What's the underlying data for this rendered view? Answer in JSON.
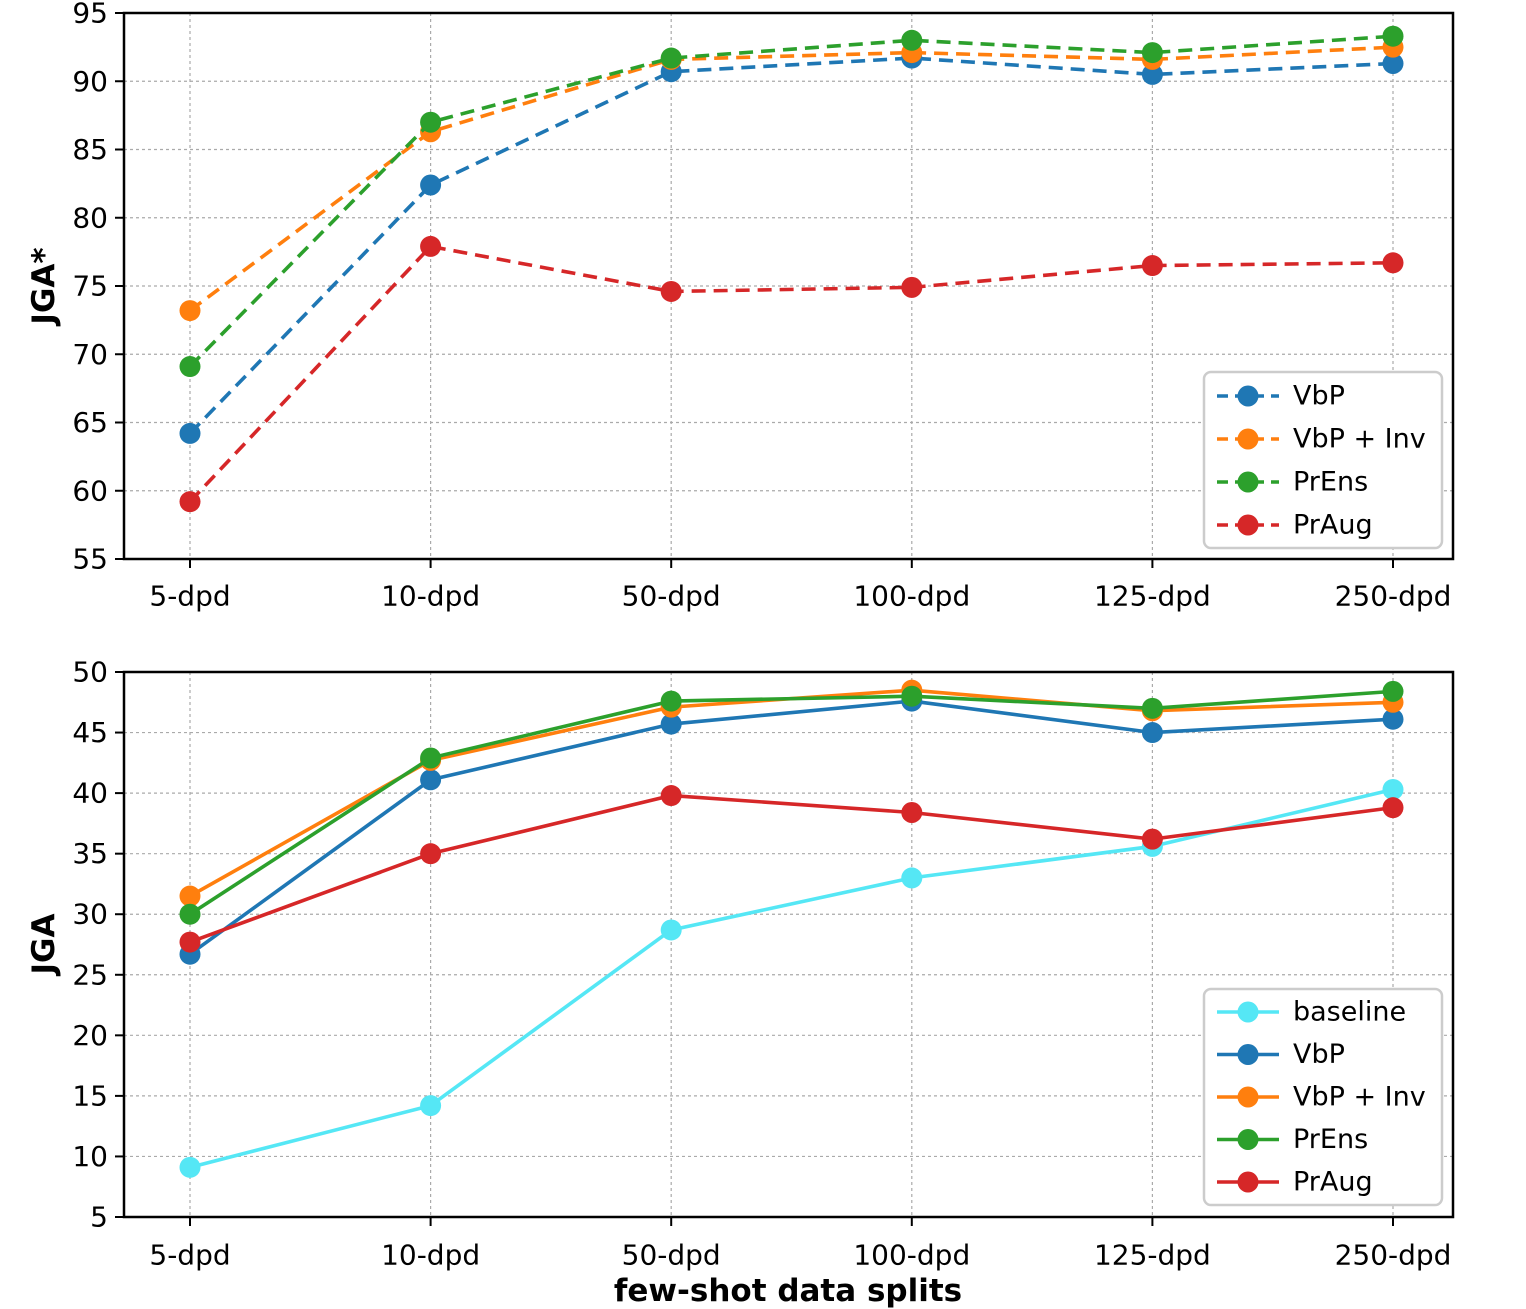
{
  "figure": {
    "xlabel": "few-shot data splits",
    "background_color": "#ffffff",
    "axis_color": "#000000",
    "grid_color": "#aaaaaa",
    "legend_border_color": "#cccccc"
  },
  "chart_data": [
    {
      "type": "line",
      "panel": "top",
      "title": "",
      "ylabel": "JGA*",
      "xlabel": "",
      "ylim": [
        55,
        95
      ],
      "yticks": [
        55,
        60,
        65,
        70,
        75,
        80,
        85,
        90,
        95
      ],
      "grid": true,
      "line_style": "dashed",
      "marker": "circle",
      "legend_position": "lower right",
      "categories": [
        "5-dpd",
        "10-dpd",
        "50-dpd",
        "100-dpd",
        "125-dpd",
        "250-dpd"
      ],
      "series": [
        {
          "name": "VbP",
          "color": "#1f77b4",
          "values": [
            64.2,
            82.4,
            90.7,
            91.7,
            90.5,
            91.3
          ]
        },
        {
          "name": "VbP + Inv",
          "color": "#ff7f0e",
          "values": [
            73.2,
            86.3,
            91.6,
            92.1,
            91.6,
            92.5
          ]
        },
        {
          "name": "PrEns",
          "color": "#2ca02c",
          "values": [
            69.1,
            87.0,
            91.7,
            93.0,
            92.1,
            93.3
          ]
        },
        {
          "name": "PrAug",
          "color": "#d62728",
          "values": [
            59.2,
            77.9,
            74.6,
            74.9,
            76.5,
            76.7
          ]
        }
      ]
    },
    {
      "type": "line",
      "panel": "bottom",
      "title": "",
      "ylabel": "JGA",
      "xlabel": "few-shot data splits",
      "ylim": [
        5,
        50
      ],
      "yticks": [
        5,
        10,
        15,
        20,
        25,
        30,
        35,
        40,
        45,
        50
      ],
      "grid": true,
      "line_style": "solid",
      "marker": "circle",
      "legend_position": "lower right",
      "categories": [
        "5-dpd",
        "10-dpd",
        "50-dpd",
        "100-dpd",
        "125-dpd",
        "250-dpd"
      ],
      "series": [
        {
          "name": "baseline",
          "color": "#55e7f5",
          "values": [
            9.1,
            14.2,
            28.7,
            33.0,
            35.6,
            40.3
          ]
        },
        {
          "name": "VbP",
          "color": "#1f77b4",
          "values": [
            26.7,
            41.1,
            45.7,
            47.6,
            45.0,
            46.1
          ]
        },
        {
          "name": "VbP + Inv",
          "color": "#ff7f0e",
          "values": [
            31.5,
            42.7,
            47.1,
            48.5,
            46.8,
            47.5
          ]
        },
        {
          "name": "PrEns",
          "color": "#2ca02c",
          "values": [
            30.0,
            42.9,
            47.6,
            48.0,
            47.0,
            48.4
          ]
        },
        {
          "name": "PrAug",
          "color": "#d62728",
          "values": [
            27.7,
            35.0,
            39.8,
            38.4,
            36.2,
            38.8
          ]
        }
      ]
    }
  ]
}
